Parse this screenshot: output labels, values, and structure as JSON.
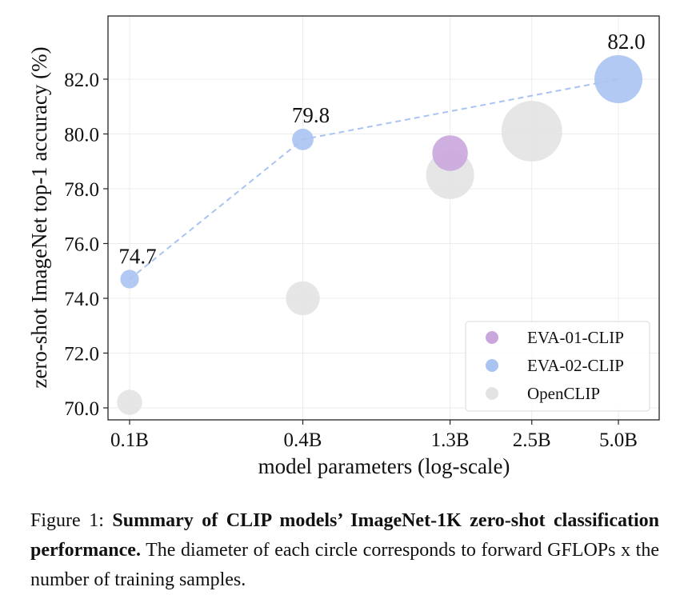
{
  "chart_data": {
    "type": "scatter",
    "title": "",
    "xlabel": "model parameters (log-scale)",
    "ylabel": "zero-shot ImageNet top-1 accuracy (%)",
    "x_scale": "log",
    "x_ticks": [
      {
        "value": 0.1,
        "label": "0.1B"
      },
      {
        "value": 0.4,
        "label": "0.4B"
      },
      {
        "value": 1.3,
        "label": "1.3B"
      },
      {
        "value": 2.5,
        "label": "2.5B"
      },
      {
        "value": 5.0,
        "label": "5.0B"
      }
    ],
    "y_ticks": [
      70.0,
      72.0,
      74.0,
      76.0,
      78.0,
      80.0,
      82.0
    ],
    "y_tick_labels": [
      "70.0",
      "72.0",
      "74.0",
      "76.0",
      "78.0",
      "80.0",
      "82.0"
    ],
    "ylim": [
      69.5,
      84.2
    ],
    "grid": true,
    "legend_position": "bottom-right",
    "size_meaning": "forward GFLOPs x the number of training samples (relative)",
    "series": [
      {
        "name": "EVA-01-CLIP",
        "color": "#c9a6dc",
        "points": [
          {
            "x": 1.3,
            "y": 79.3,
            "size": 2.2
          }
        ]
      },
      {
        "name": "EVA-02-CLIP",
        "color": "#a9c3f2",
        "connected": true,
        "points": [
          {
            "x": 0.1,
            "y": 74.7,
            "size": 0.6,
            "label": "74.7"
          },
          {
            "x": 0.4,
            "y": 79.8,
            "size": 0.8,
            "label": "79.8"
          },
          {
            "x": 5.0,
            "y": 82.0,
            "size": 4.0,
            "label": "82.0"
          }
        ]
      },
      {
        "name": "OpenCLIP",
        "color": "#e3e3e3",
        "points": [
          {
            "x": 0.1,
            "y": 70.2,
            "size": 1.1
          },
          {
            "x": 0.4,
            "y": 74.0,
            "size": 2.0
          },
          {
            "x": 1.3,
            "y": 78.5,
            "size": 4.0
          },
          {
            "x": 2.5,
            "y": 80.1,
            "size": 6.4
          }
        ]
      }
    ]
  },
  "caption": {
    "prefix": "Figure 1: ",
    "bold": "Summary of CLIP models’ ImageNet-1K zero-shot classification performance.",
    "rest": " The diameter of each circle corresponds to forward GFLOPs x the number of training samples."
  }
}
